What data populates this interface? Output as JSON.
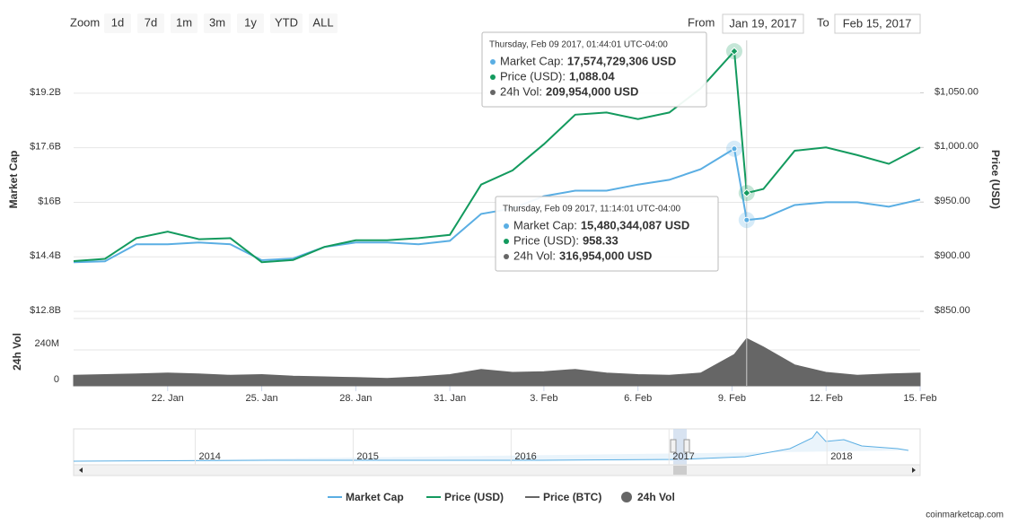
{
  "chart_data": {
    "type": "line",
    "zoom_label": "Zoom",
    "zoom_buttons": [
      "1d",
      "7d",
      "1m",
      "3m",
      "1y",
      "YTD",
      "ALL"
    ],
    "from_label": "From",
    "from_value": "Jan 19, 2017",
    "to_label": "To",
    "to_value": "Feb 15, 2017",
    "y_label": "Market Cap",
    "y2_label": "Price (USD)",
    "vol_label": "24h Vol",
    "credit": "coinmarketcap.com",
    "x": [
      "2017-01-19",
      "2017-01-20",
      "2017-01-21",
      "2017-01-22",
      "2017-01-23",
      "2017-01-24",
      "2017-01-25",
      "2017-01-26",
      "2017-01-27",
      "2017-01-28",
      "2017-01-29",
      "2017-01-30",
      "2017-01-31",
      "2017-02-01",
      "2017-02-02",
      "2017-02-03",
      "2017-02-04",
      "2017-02-05",
      "2017-02-06",
      "2017-02-07",
      "2017-02-08",
      "2017-02-09 01:44",
      "2017-02-09 11:14",
      "2017-02-10",
      "2017-02-11",
      "2017-02-12",
      "2017-02-13",
      "2017-02-14",
      "2017-02-15"
    ],
    "xlim": [
      "2017-01-19",
      "2017-02-15"
    ],
    "xticks": [
      {
        "value": "2017-01-22",
        "label": "22. Jan"
      },
      {
        "value": "2017-01-25",
        "label": "25. Jan"
      },
      {
        "value": "2017-01-28",
        "label": "28. Jan"
      },
      {
        "value": "2017-01-31",
        "label": "31. Jan"
      },
      {
        "value": "2017-02-03",
        "label": "3. Feb"
      },
      {
        "value": "2017-02-06",
        "label": "6. Feb"
      },
      {
        "value": "2017-02-09",
        "label": "9. Feb"
      },
      {
        "value": "2017-02-12",
        "label": "12. Feb"
      },
      {
        "value": "2017-02-15",
        "label": "15. Feb"
      }
    ],
    "ylim": [
      12.8,
      20.75
    ],
    "yticks": [
      {
        "value": 12.8,
        "label": "$12.8B"
      },
      {
        "value": 14.4,
        "label": "$14.4B"
      },
      {
        "value": 16,
        "label": "$16B"
      },
      {
        "value": 17.6,
        "label": "$17.6B"
      },
      {
        "value": 19.2,
        "label": "$19.2B"
      }
    ],
    "y2lim": [
      850,
      1098
    ],
    "y2ticks": [
      {
        "value": 850,
        "label": "$850.00"
      },
      {
        "value": 900,
        "label": "$900.00"
      },
      {
        "value": 950,
        "label": "$950.00"
      },
      {
        "value": 1000,
        "label": "$1,000.00"
      },
      {
        "value": 1050,
        "label": "$1,050.00"
      }
    ],
    "vol_lim": [
      0,
      450
    ],
    "vol_ticks": [
      0,
      {
        "value": 240,
        "label": "240M"
      }
    ],
    "series": [
      {
        "name": "Market Cap",
        "color": "#5aaee3",
        "axis": "y",
        "values": [
          14.24,
          14.27,
          14.77,
          14.77,
          14.82,
          14.77,
          14.3,
          14.35,
          14.69,
          14.82,
          14.82,
          14.77,
          14.87,
          15.66,
          15.82,
          16.18,
          16.34,
          16.34,
          16.52,
          16.66,
          16.97,
          17.57,
          15.48,
          15.53,
          15.92,
          16.0,
          16.0,
          15.87,
          16.08
        ]
      },
      {
        "name": "Price (USD)",
        "color": "#139a5e",
        "axis": "y2",
        "values": [
          896,
          898,
          917,
          923,
          916,
          917,
          895,
          897,
          909,
          915,
          915,
          917,
          920,
          966,
          979,
          1003,
          1030,
          1032,
          1026,
          1032,
          1054,
          1088.04,
          958.33,
          962,
          997,
          1000,
          993,
          985,
          1000
        ]
      },
      {
        "name": "Price (BTC)",
        "color": "#666666",
        "axis": "none",
        "values": [
          null,
          null,
          null,
          null,
          null,
          null,
          null,
          null,
          null,
          null,
          null,
          null,
          null,
          null,
          null,
          null,
          null,
          null,
          null,
          null,
          null,
          null,
          null,
          null,
          null,
          null,
          null,
          null,
          null
        ]
      },
      {
        "name": "24h Vol",
        "color": "#666666",
        "axis": "vol",
        "values": [
          70,
          75,
          80,
          85,
          80,
          70,
          75,
          65,
          60,
          55,
          50,
          60,
          75,
          110,
          90,
          95,
          110,
          85,
          75,
          70,
          85,
          209.954,
          316.954,
          260,
          140,
          90,
          70,
          80,
          85
        ]
      }
    ],
    "tooltips": [
      {
        "index": 21,
        "header": "Thursday, Feb 09 2017, 01:44:01 UTC-04:00",
        "rows": [
          {
            "label": "Market Cap:",
            "value": "17,574,729,306 USD"
          },
          {
            "label": "Price (USD):",
            "value": "1,088.04"
          },
          {
            "label": "24h Vol:",
            "value": "209,954,000 USD"
          }
        ]
      },
      {
        "index": 22,
        "header": "Thursday, Feb 09 2017, 11:14:01 UTC-04:00",
        "rows": [
          {
            "label": "Market Cap:",
            "value": "15,480,344,087 USD"
          },
          {
            "label": "Price (USD):",
            "value": "958.33"
          },
          {
            "label": "24h Vol:",
            "value": "316,954,000 USD"
          }
        ]
      }
    ],
    "navigator": {
      "xlim": [
        2013.23,
        2018.59
      ],
      "xticks": [
        2014,
        2015,
        2016,
        2017,
        2018
      ]
    }
  }
}
